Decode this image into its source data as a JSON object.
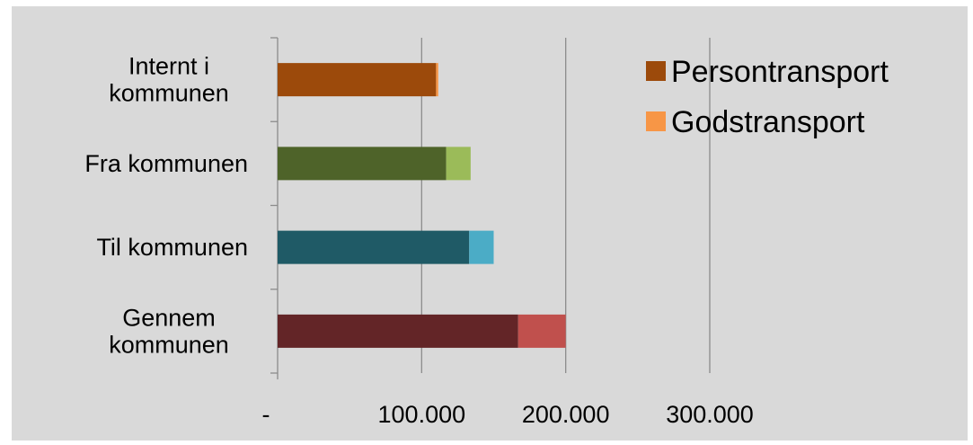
{
  "chart_data": {
    "type": "bar",
    "orientation": "horizontal",
    "stacked": true,
    "categories": [
      [
        "Internt i",
        "kommunen"
      ],
      [
        "Fra kommunen"
      ],
      [
        "Til kommunen"
      ],
      [
        "Gennem",
        "kommunen"
      ]
    ],
    "series": [
      {
        "name": "Persontransport",
        "values": [
          110000,
          117000,
          133000,
          167000
        ],
        "colors": [
          "#9c4a0b",
          "#4e6329",
          "#1f5a66",
          "#632527"
        ],
        "legend_color": "#9c4a0b"
      },
      {
        "name": "Godstransport",
        "values": [
          1500,
          17000,
          17000,
          33000
        ],
        "colors": [
          "#f79646",
          "#9bbb59",
          "#4bacc6",
          "#c0504d"
        ],
        "legend_color": "#f79646"
      }
    ],
    "xlim": [
      0,
      300000
    ],
    "xticks": [
      0,
      100000,
      200000,
      300000
    ],
    "xtick_labels": [
      "-",
      "100.000",
      "200.000",
      "300.000"
    ],
    "grid": true,
    "legend_position": "top-right",
    "background_color": "#d9d9d9"
  }
}
